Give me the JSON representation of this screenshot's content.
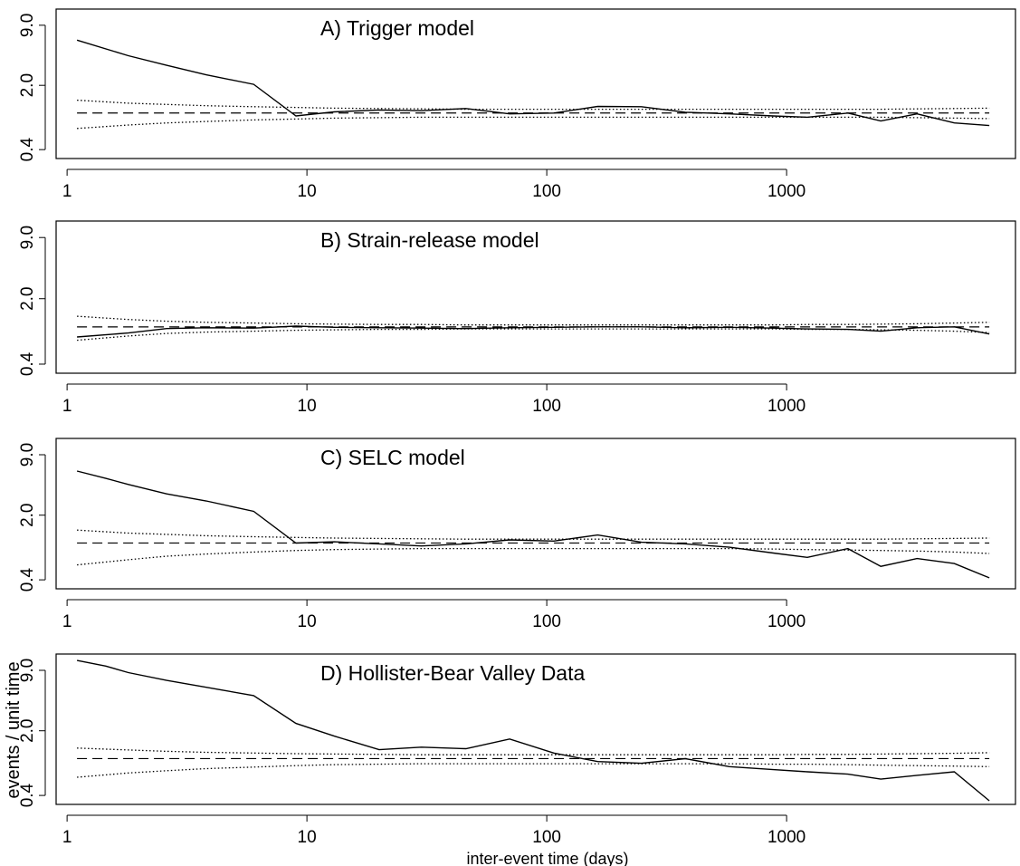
{
  "figure": {
    "ylabel": "events / unit time",
    "xlabel": "inter-event time (days)"
  },
  "chart_data": [
    {
      "type": "line",
      "title": "A)  Trigger model",
      "x_scale": "log",
      "y_scale": "log",
      "xlim": [
        0.9,
        9000
      ],
      "ylim": [
        0.32,
        13.5
      ],
      "x_ticks": [
        1,
        10,
        100,
        1000
      ],
      "x_tick_labels": [
        "1",
        "10",
        "100",
        "1000"
      ],
      "y_ticks": [
        0.4,
        2.0,
        9.0
      ],
      "y_tick_labels": [
        "0.4",
        "2.0",
        "9.0"
      ],
      "grid": false,
      "reference_level": 1.0,
      "series": [
        {
          "style": "solid",
          "x": [
            1.1,
            1.8,
            2.6,
            3.8,
            6,
            9,
            13,
            20,
            30,
            46,
            70,
            107,
            163,
            248,
            378,
            577,
            880,
            1220,
            1800,
            2470,
            3500,
            5000,
            7000
          ],
          "y": [
            6.2,
            4.2,
            3.3,
            2.6,
            2.05,
            0.93,
            1.03,
            1.08,
            1.06,
            1.12,
            0.98,
            1.0,
            1.18,
            1.17,
            1.02,
            0.98,
            0.93,
            0.9,
            1.0,
            0.82,
            0.98,
            0.78,
            0.73
          ]
        },
        {
          "style": "dotted",
          "x": [
            1.1,
            1.8,
            2.6,
            3.8,
            6,
            9,
            13,
            20,
            30,
            46,
            70,
            107,
            163,
            248,
            378,
            577,
            880,
            1220,
            1800,
            2470,
            3500,
            5000,
            7000
          ],
          "y": [
            1.38,
            1.28,
            1.24,
            1.2,
            1.17,
            1.15,
            1.13,
            1.12,
            1.11,
            1.1,
            1.1,
            1.1,
            1.1,
            1.1,
            1.1,
            1.1,
            1.1,
            1.1,
            1.1,
            1.1,
            1.11,
            1.12,
            1.13
          ]
        },
        {
          "style": "dotted",
          "x": [
            1.1,
            1.8,
            2.6,
            3.8,
            6,
            9,
            13,
            20,
            30,
            46,
            70,
            107,
            163,
            248,
            378,
            577,
            880,
            1220,
            1800,
            2470,
            3500,
            5000,
            7000
          ],
          "y": [
            0.68,
            0.74,
            0.78,
            0.81,
            0.84,
            0.86,
            0.88,
            0.89,
            0.9,
            0.9,
            0.9,
            0.9,
            0.9,
            0.9,
            0.9,
            0.9,
            0.9,
            0.9,
            0.9,
            0.9,
            0.89,
            0.88,
            0.87
          ]
        }
      ]
    },
    {
      "type": "line",
      "title": "B)  Strain-release model",
      "x_scale": "log",
      "y_scale": "log",
      "xlim": [
        0.9,
        9000
      ],
      "ylim": [
        0.32,
        13.5
      ],
      "x_ticks": [
        1,
        10,
        100,
        1000
      ],
      "x_tick_labels": [
        "1",
        "10",
        "100",
        "1000"
      ],
      "y_ticks": [
        0.4,
        2.0,
        9.0
      ],
      "y_tick_labels": [
        "0.4",
        "2.0",
        "9.0"
      ],
      "grid": false,
      "reference_level": 1.0,
      "series": [
        {
          "style": "solid",
          "x": [
            1.1,
            1.8,
            2.6,
            3.8,
            6,
            9,
            13,
            20,
            30,
            46,
            70,
            107,
            163,
            248,
            378,
            577,
            880,
            1220,
            1800,
            2470,
            3500,
            5000,
            7000
          ],
          "y": [
            0.78,
            0.86,
            0.96,
            0.98,
            0.97,
            1.02,
            0.99,
            0.98,
            0.97,
            0.96,
            0.98,
            0.99,
            1.0,
            1.0,
            0.98,
            0.99,
            0.97,
            0.95,
            0.94,
            0.9,
            0.98,
            1.0,
            0.84
          ]
        },
        {
          "style": "dotted",
          "x": [
            1.1,
            1.8,
            2.6,
            3.8,
            6,
            9,
            13,
            20,
            30,
            46,
            70,
            107,
            163,
            248,
            378,
            577,
            880,
            1220,
            1800,
            2470,
            3500,
            5000,
            7000
          ],
          "y": [
            1.3,
            1.2,
            1.15,
            1.12,
            1.1,
            1.08,
            1.07,
            1.06,
            1.06,
            1.05,
            1.05,
            1.05,
            1.05,
            1.05,
            1.05,
            1.05,
            1.05,
            1.06,
            1.06,
            1.07,
            1.08,
            1.1,
            1.12
          ]
        },
        {
          "style": "dotted",
          "x": [
            1.1,
            1.8,
            2.6,
            3.8,
            6,
            9,
            13,
            20,
            30,
            46,
            70,
            107,
            163,
            248,
            378,
            577,
            880,
            1220,
            1800,
            2470,
            3500,
            5000,
            7000
          ],
          "y": [
            0.72,
            0.8,
            0.85,
            0.88,
            0.9,
            0.92,
            0.93,
            0.94,
            0.94,
            0.95,
            0.95,
            0.95,
            0.95,
            0.95,
            0.95,
            0.95,
            0.95,
            0.94,
            0.94,
            0.93,
            0.92,
            0.9,
            0.87
          ]
        }
      ]
    },
    {
      "type": "line",
      "title": "C)  SELC model",
      "x_scale": "log",
      "y_scale": "log",
      "xlim": [
        0.9,
        9000
      ],
      "ylim": [
        0.32,
        13.5
      ],
      "x_ticks": [
        1,
        10,
        100,
        1000
      ],
      "x_tick_labels": [
        "1",
        "10",
        "100",
        "1000"
      ],
      "y_ticks": [
        0.4,
        2.0,
        9.0
      ],
      "y_tick_labels": [
        "0.4",
        "2.0",
        "9.0"
      ],
      "grid": false,
      "reference_level": 1.0,
      "series": [
        {
          "style": "solid",
          "x": [
            1.1,
            1.45,
            1.8,
            2.6,
            3.8,
            6,
            9,
            13,
            20,
            30,
            46,
            70,
            107,
            163,
            248,
            378,
            577,
            880,
            1220,
            1800,
            2470,
            3500,
            5000,
            7000
          ],
          "y": [
            6.0,
            5.0,
            4.3,
            3.4,
            2.85,
            2.2,
            1.0,
            1.03,
            0.98,
            0.93,
            0.98,
            1.08,
            1.05,
            1.22,
            1.02,
            0.98,
            0.9,
            0.78,
            0.7,
            0.87,
            0.56,
            0.68,
            0.6,
            0.42
          ]
        },
        {
          "style": "dotted",
          "x": [
            1.1,
            1.8,
            2.6,
            3.8,
            6,
            9,
            13,
            20,
            30,
            46,
            70,
            107,
            163,
            248,
            378,
            577,
            880,
            1220,
            1800,
            2470,
            3500,
            5000,
            7000
          ],
          "y": [
            1.38,
            1.28,
            1.24,
            1.2,
            1.17,
            1.15,
            1.13,
            1.12,
            1.11,
            1.1,
            1.1,
            1.1,
            1.1,
            1.1,
            1.1,
            1.1,
            1.1,
            1.1,
            1.1,
            1.1,
            1.11,
            1.12,
            1.13
          ]
        },
        {
          "style": "dotted",
          "x": [
            1.1,
            1.8,
            2.6,
            3.8,
            6,
            9,
            13,
            20,
            30,
            46,
            70,
            107,
            163,
            248,
            378,
            577,
            880,
            1220,
            1800,
            2470,
            3500,
            5000,
            7000
          ],
          "y": [
            0.58,
            0.66,
            0.72,
            0.76,
            0.8,
            0.83,
            0.85,
            0.86,
            0.87,
            0.87,
            0.87,
            0.87,
            0.87,
            0.87,
            0.87,
            0.87,
            0.86,
            0.85,
            0.84,
            0.83,
            0.82,
            0.8,
            0.77
          ]
        }
      ]
    },
    {
      "type": "line",
      "title": "D)  Hollister-Bear Valley Data",
      "x_scale": "log",
      "y_scale": "log",
      "xlim": [
        0.9,
        9000
      ],
      "ylim": [
        0.32,
        13.5
      ],
      "x_ticks": [
        1,
        10,
        100,
        1000
      ],
      "x_tick_labels": [
        "1",
        "10",
        "100",
        "1000"
      ],
      "y_ticks": [
        0.4,
        2.0,
        9.0
      ],
      "y_tick_labels": [
        "0.4",
        "2.0",
        "9.0"
      ],
      "grid": false,
      "reference_level": 1.0,
      "series": [
        {
          "style": "solid",
          "x": [
            1.1,
            1.45,
            1.8,
            2.6,
            3.8,
            6,
            9,
            13,
            20,
            30,
            46,
            70,
            107,
            163,
            248,
            378,
            577,
            880,
            1220,
            1800,
            2470,
            3500,
            5000,
            7000
          ],
          "y": [
            11.5,
            10.0,
            8.5,
            7.0,
            5.9,
            4.8,
            2.4,
            1.75,
            1.25,
            1.33,
            1.28,
            1.63,
            1.15,
            0.93,
            0.89,
            1.0,
            0.82,
            0.76,
            0.72,
            0.68,
            0.6,
            0.66,
            0.72,
            0.35
          ]
        },
        {
          "style": "dotted",
          "x": [
            1.1,
            1.8,
            2.6,
            3.8,
            6,
            9,
            13,
            20,
            30,
            46,
            70,
            107,
            163,
            248,
            378,
            577,
            880,
            1220,
            1800,
            2470,
            3500,
            5000,
            7000
          ],
          "y": [
            1.3,
            1.24,
            1.2,
            1.17,
            1.15,
            1.13,
            1.12,
            1.11,
            1.1,
            1.1,
            1.1,
            1.1,
            1.1,
            1.1,
            1.1,
            1.1,
            1.1,
            1.11,
            1.11,
            1.12,
            1.13,
            1.14,
            1.16
          ]
        },
        {
          "style": "dotted",
          "x": [
            1.1,
            1.8,
            2.6,
            3.8,
            6,
            9,
            13,
            20,
            30,
            46,
            70,
            107,
            163,
            248,
            378,
            577,
            880,
            1220,
            1800,
            2470,
            3500,
            5000,
            7000
          ],
          "y": [
            0.63,
            0.7,
            0.74,
            0.78,
            0.81,
            0.84,
            0.86,
            0.87,
            0.88,
            0.88,
            0.88,
            0.88,
            0.88,
            0.88,
            0.88,
            0.88,
            0.87,
            0.87,
            0.86,
            0.85,
            0.84,
            0.83,
            0.82
          ]
        }
      ]
    }
  ]
}
